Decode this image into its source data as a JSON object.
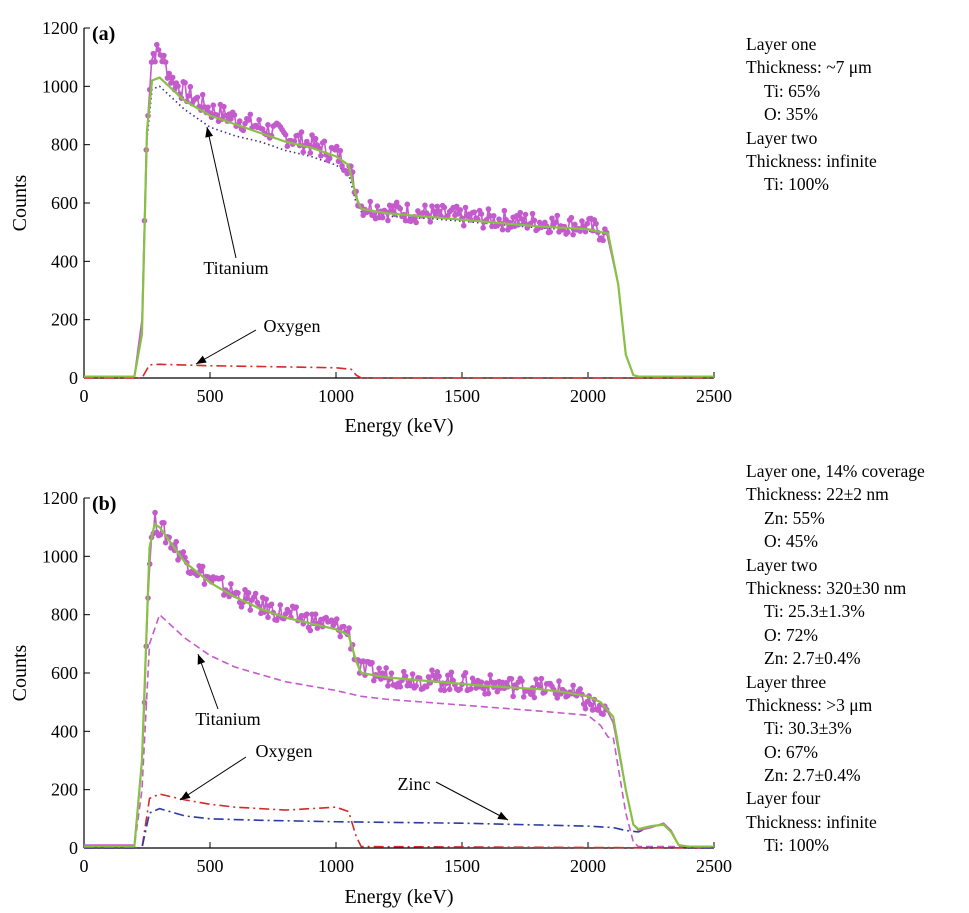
{
  "chart_data": [
    {
      "type": "line",
      "panel_label": "(a)",
      "xlabel": "Energy (keV)",
      "ylabel": "Counts",
      "xlim": [
        0,
        2500
      ],
      "ylim": [
        0,
        1200
      ],
      "xticks": [
        0,
        500,
        1000,
        1500,
        2000,
        2500
      ],
      "yticks": [
        0,
        200,
        400,
        600,
        800,
        1000,
        1200
      ],
      "grid": false,
      "series": [
        {
          "role": "measured",
          "color": "#c45bcc",
          "style": "solid-with-markers",
          "x": [
            0,
            200,
            230,
            250,
            270,
            300,
            350,
            400,
            500,
            600,
            700,
            800,
            900,
            1000,
            1050,
            1080,
            1100,
            1200,
            1400,
            1600,
            1800,
            2000,
            2080,
            2120,
            2150,
            2180,
            2200,
            2500
          ],
          "y": [
            5,
            5,
            200,
            880,
            1110,
            1120,
            1020,
            980,
            920,
            890,
            860,
            830,
            800,
            770,
            730,
            640,
            590,
            575,
            560,
            545,
            535,
            520,
            490,
            320,
            80,
            10,
            5,
            5
          ]
        },
        {
          "role": "fit",
          "color": "#88c044",
          "style": "solid",
          "x": [
            0,
            200,
            230,
            250,
            270,
            300,
            350,
            400,
            500,
            600,
            700,
            800,
            900,
            1000,
            1050,
            1080,
            1100,
            1200,
            1400,
            1600,
            1800,
            2000,
            2080,
            2120,
            2150,
            2180,
            2200,
            2500
          ],
          "y": [
            5,
            5,
            150,
            850,
            1020,
            1030,
            990,
            950,
            900,
            870,
            840,
            810,
            790,
            760,
            730,
            620,
            580,
            565,
            550,
            535,
            520,
            510,
            495,
            320,
            80,
            10,
            5,
            5
          ]
        },
        {
          "name": "Titanium",
          "color": "#3b2f8f",
          "style": "dotted",
          "x": [
            0,
            200,
            230,
            250,
            270,
            300,
            350,
            400,
            500,
            600,
            700,
            800,
            900,
            1000,
            1050,
            1080,
            1100,
            1200,
            1400,
            1600,
            1800,
            2000,
            2080,
            2120,
            2150,
            2180,
            2200,
            2500
          ],
          "y": [
            5,
            5,
            150,
            820,
            990,
            1000,
            960,
            920,
            860,
            830,
            810,
            780,
            760,
            730,
            700,
            600,
            570,
            555,
            545,
            530,
            515,
            505,
            490,
            320,
            80,
            10,
            5,
            5
          ]
        },
        {
          "name": "Oxygen",
          "color": "#d42a2a",
          "style": "dash-dot",
          "x": [
            0,
            230,
            260,
            300,
            500,
            800,
            1000,
            1060,
            1080,
            1100,
            2500
          ],
          "y": [
            0,
            0,
            45,
            47,
            42,
            38,
            35,
            30,
            10,
            0,
            0
          ]
        }
      ],
      "annotations": [
        "Titanium",
        "Oxygen"
      ]
    },
    {
      "type": "line",
      "panel_label": "(b)",
      "xlabel": "Energy (keV)",
      "ylabel": "Counts",
      "xlim": [
        0,
        2500
      ],
      "ylim": [
        0,
        1200
      ],
      "xticks": [
        0,
        500,
        1000,
        1500,
        2000,
        2500
      ],
      "yticks": [
        0,
        200,
        400,
        600,
        800,
        1000,
        1200
      ],
      "grid": false,
      "series": [
        {
          "role": "measured",
          "color": "#c45bcc",
          "style": "solid-with-markers",
          "x": [
            0,
            200,
            230,
            260,
            280,
            300,
            400,
            500,
            600,
            700,
            800,
            900,
            1000,
            1050,
            1080,
            1100,
            1200,
            1400,
            1600,
            1800,
            1900,
            2000,
            2050,
            2100,
            2150,
            2180,
            2200,
            2250,
            2300,
            2330,
            2360,
            2400,
            2500
          ],
          "y": [
            10,
            10,
            300,
            1000,
            1120,
            1100,
            990,
            920,
            870,
            830,
            800,
            780,
            760,
            740,
            650,
            610,
            590,
            575,
            560,
            550,
            540,
            500,
            470,
            430,
            200,
            80,
            60,
            70,
            85,
            60,
            10,
            5,
            5
          ]
        },
        {
          "role": "fit",
          "color": "#88c044",
          "style": "solid",
          "x": [
            0,
            200,
            230,
            260,
            280,
            300,
            400,
            500,
            600,
            700,
            800,
            900,
            1000,
            1050,
            1080,
            1100,
            1200,
            1400,
            1600,
            1800,
            1900,
            2000,
            2050,
            2100,
            2150,
            2180,
            2200,
            2250,
            2300,
            2330,
            2360,
            2400,
            2500
          ],
          "y": [
            5,
            5,
            300,
            1030,
            1110,
            1100,
            980,
            910,
            860,
            820,
            790,
            770,
            750,
            730,
            640,
            600,
            585,
            570,
            555,
            545,
            535,
            520,
            500,
            450,
            200,
            80,
            65,
            75,
            80,
            55,
            10,
            5,
            5
          ]
        },
        {
          "name": "Titanium",
          "color": "#c45bcc",
          "style": "dashed",
          "x": [
            0,
            200,
            230,
            260,
            300,
            400,
            500,
            600,
            800,
            1000,
            1100,
            1200,
            1500,
            1800,
            2000,
            2050,
            2080,
            2100,
            2150,
            2180,
            2200,
            2500
          ],
          "y": [
            5,
            5,
            200,
            700,
            800,
            720,
            660,
            620,
            570,
            540,
            520,
            510,
            490,
            470,
            455,
            420,
            380,
            380,
            120,
            20,
            5,
            5
          ]
        },
        {
          "name": "Oxygen",
          "color": "#d42a2a",
          "style": "dash-dot",
          "x": [
            0,
            230,
            260,
            300,
            400,
            500,
            600,
            800,
            900,
            1000,
            1050,
            1080,
            1100,
            2500
          ],
          "y": [
            0,
            0,
            170,
            185,
            165,
            150,
            140,
            130,
            135,
            140,
            125,
            40,
            5,
            0
          ]
        },
        {
          "name": "Zinc",
          "color": "#2a3aa8",
          "style": "dash-dot",
          "x": [
            0,
            230,
            260,
            300,
            400,
            500,
            700,
            1000,
            1500,
            2000,
            2100,
            2150,
            2200,
            2250,
            2300,
            2330,
            2360,
            2400,
            2500
          ],
          "y": [
            0,
            0,
            120,
            135,
            110,
            100,
            95,
            90,
            85,
            75,
            70,
            60,
            55,
            75,
            80,
            55,
            10,
            0,
            0
          ]
        }
      ],
      "annotations": [
        "Titanium",
        "Oxygen",
        "Zinc"
      ]
    }
  ],
  "side_text_a": [
    {
      "text": "Layer one",
      "indent": false
    },
    {
      "text": "Thickness: ~7 μm",
      "indent": false
    },
    {
      "text": "Ti: 65%",
      "indent": true
    },
    {
      "text": "O: 35%",
      "indent": true
    },
    {
      "text": "Layer two",
      "indent": false
    },
    {
      "text": "Thickness: infinite",
      "indent": false
    },
    {
      "text": "Ti: 100%",
      "indent": true
    }
  ],
  "side_text_b": [
    {
      "text": "Layer one, 14% coverage",
      "indent": false
    },
    {
      "text": "Thickness: 22±2 nm",
      "indent": false
    },
    {
      "text": "Zn: 55%",
      "indent": true
    },
    {
      "text": "O: 45%",
      "indent": true
    },
    {
      "text": "Layer two",
      "indent": false
    },
    {
      "text": "Thickness: 320±30 nm",
      "indent": false
    },
    {
      "text": "Ti: 25.3±1.3%",
      "indent": true
    },
    {
      "text": "O: 72%",
      "indent": true
    },
    {
      "text": "Zn: 2.7±0.4%",
      "indent": true
    },
    {
      "text": "Layer three",
      "indent": false
    },
    {
      "text": "Thickness: >3 μm",
      "indent": false
    },
    {
      "text": "Ti: 30.3±3%",
      "indent": true
    },
    {
      "text": "O: 67%",
      "indent": true
    },
    {
      "text": "Zn: 2.7±0.4%",
      "indent": true
    },
    {
      "text": "Layer four",
      "indent": false
    },
    {
      "text": "Thickness: infinite",
      "indent": false
    },
    {
      "text": "Ti: 100%",
      "indent": true
    }
  ]
}
